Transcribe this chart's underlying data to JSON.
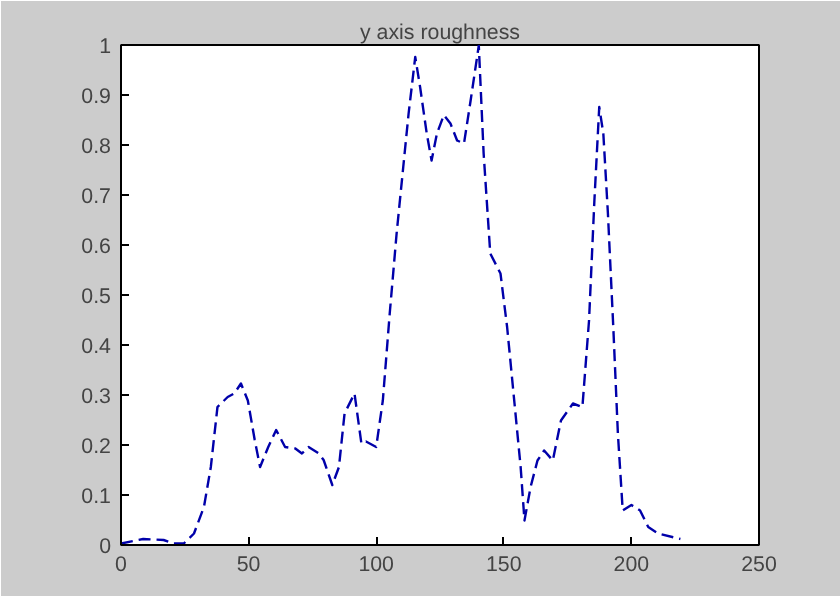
{
  "chart_data": {
    "type": "line",
    "title": "y axis roughness",
    "x": [
      0,
      8.7,
      16.7,
      20.6,
      24.6,
      28.6,
      32.5,
      35.2,
      37.8,
      41.8,
      44.4,
      47,
      49.7,
      52.4,
      54.5,
      57.7,
      60.8,
      64.3,
      68.3,
      70.9,
      73.5,
      77.5,
      79.4,
      82.8,
      85.4,
      87.6,
      91.5,
      94.2,
      96,
      100,
      102.6,
      105.3,
      108,
      110.6,
      112.7,
      115.3,
      117.2,
      119.8,
      121.7,
      123.8,
      126.5,
      129.1,
      131.7,
      134.4,
      137,
      140.2,
      142.1,
      144.7,
      148.7,
      151.3,
      156.6,
      158.1,
      160.5,
      163.2,
      165.8,
      169.2,
      172.4,
      177.1,
      180.8,
      183.4,
      185.5,
      187.4,
      189,
      190.8,
      192.9,
      194.7,
      196.6,
      200,
      203.4,
      206.6,
      210.5,
      219.2
    ],
    "series": [
      {
        "color": "#0000aa",
        "values": [
          0.003,
          0.012,
          0.01,
          0.003,
          0.003,
          0.023,
          0.076,
          0.156,
          0.276,
          0.296,
          0.303,
          0.323,
          0.289,
          0.21,
          0.156,
          0.196,
          0.23,
          0.196,
          0.193,
          0.183,
          0.196,
          0.183,
          0.17,
          0.12,
          0.156,
          0.263,
          0.303,
          0.203,
          0.207,
          0.196,
          0.289,
          0.463,
          0.623,
          0.756,
          0.863,
          0.976,
          0.916,
          0.823,
          0.769,
          0.823,
          0.86,
          0.843,
          0.809,
          0.803,
          0.889,
          0.999,
          0.783,
          0.583,
          0.543,
          0.436,
          0.156,
          0.049,
          0.116,
          0.169,
          0.189,
          0.169,
          0.249,
          0.283,
          0.276,
          0.449,
          0.689,
          0.876,
          0.823,
          0.663,
          0.436,
          0.223,
          0.069,
          0.08,
          0.069,
          0.036,
          0.023,
          0.012
        ]
      }
    ],
    "xlim": [
      0,
      250
    ],
    "xticks": [
      0,
      50,
      100,
      150,
      200,
      250
    ],
    "ylim": [
      0,
      1
    ],
    "yticks": [
      0,
      0.1,
      0.2,
      0.3,
      0.4,
      0.5,
      0.6,
      0.7,
      0.8,
      0.9,
      1
    ],
    "grid": false,
    "line_style": "dashed",
    "marker": "none"
  }
}
